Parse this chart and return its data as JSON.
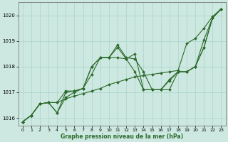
{
  "xlabel": "Graphe pression niveau de la mer (hPa)",
  "bg_color": "#cce8e0",
  "line_color": "#2d6a2d",
  "grid_color": "#aad4c8",
  "xlim": [
    -0.5,
    23.5
  ],
  "ylim": [
    1015.7,
    1020.5
  ],
  "yticks": [
    1016,
    1017,
    1018,
    1019,
    1020
  ],
  "xticks": [
    0,
    1,
    2,
    3,
    4,
    5,
    6,
    7,
    8,
    9,
    10,
    11,
    12,
    13,
    14,
    15,
    16,
    17,
    18,
    19,
    20,
    21,
    22,
    23
  ],
  "series": [
    {
      "x": [
        0,
        1,
        2,
        3,
        4,
        5,
        6,
        7,
        8,
        9,
        10,
        11,
        12,
        13,
        14,
        15,
        16,
        17,
        18,
        19,
        20,
        21,
        22,
        23
      ],
      "y": [
        1015.85,
        1016.1,
        1016.55,
        1016.6,
        1016.6,
        1016.75,
        1016.85,
        1016.95,
        1017.05,
        1017.15,
        1017.3,
        1017.4,
        1017.5,
        1017.6,
        1017.65,
        1017.7,
        1017.75,
        1017.8,
        1017.85,
        1018.9,
        1019.1,
        1019.5,
        1019.95,
        1020.25
      ]
    },
    {
      "x": [
        0,
        1,
        2,
        3,
        4,
        5,
        6,
        7,
        8,
        9,
        10,
        11,
        12,
        13,
        14,
        15,
        16,
        17,
        18,
        19,
        20,
        21,
        22,
        23
      ],
      "y": [
        1015.85,
        1016.1,
        1016.55,
        1016.6,
        1016.2,
        1016.8,
        1017.0,
        1017.15,
        1017.7,
        1018.35,
        1018.35,
        1018.85,
        1018.35,
        1018.3,
        1017.8,
        1017.1,
        1017.1,
        1017.5,
        1017.8,
        1017.8,
        1018.0,
        1019.05,
        1019.9,
        1020.25
      ]
    },
    {
      "x": [
        0,
        1,
        2,
        3,
        4,
        5,
        6,
        7,
        8,
        9,
        10,
        11,
        12,
        13,
        14,
        15,
        16,
        17,
        18,
        19,
        20,
        21,
        22,
        23
      ],
      "y": [
        1015.85,
        1016.1,
        1016.55,
        1016.6,
        1016.2,
        1017.0,
        1017.05,
        1017.15,
        1018.0,
        1018.35,
        1018.35,
        1018.75,
        1018.3,
        1017.8,
        1017.1,
        1017.1,
        1017.1,
        1017.45,
        1017.8,
        1017.8,
        1018.0,
        1018.75,
        1019.9,
        1020.25
      ]
    },
    {
      "x": [
        0,
        1,
        2,
        3,
        4,
        5,
        6,
        7,
        8,
        9,
        10,
        11,
        12,
        13,
        14,
        15,
        16,
        17,
        18,
        19,
        20,
        21,
        22,
        23
      ],
      "y": [
        1015.85,
        1016.1,
        1016.55,
        1016.6,
        1016.6,
        1017.05,
        1017.05,
        1017.15,
        1018.0,
        1018.35,
        1018.35,
        1018.35,
        1018.3,
        1018.5,
        1017.1,
        1017.1,
        1017.1,
        1017.1,
        1017.8,
        1017.8,
        1018.0,
        1018.75,
        1019.9,
        1020.25
      ]
    }
  ]
}
